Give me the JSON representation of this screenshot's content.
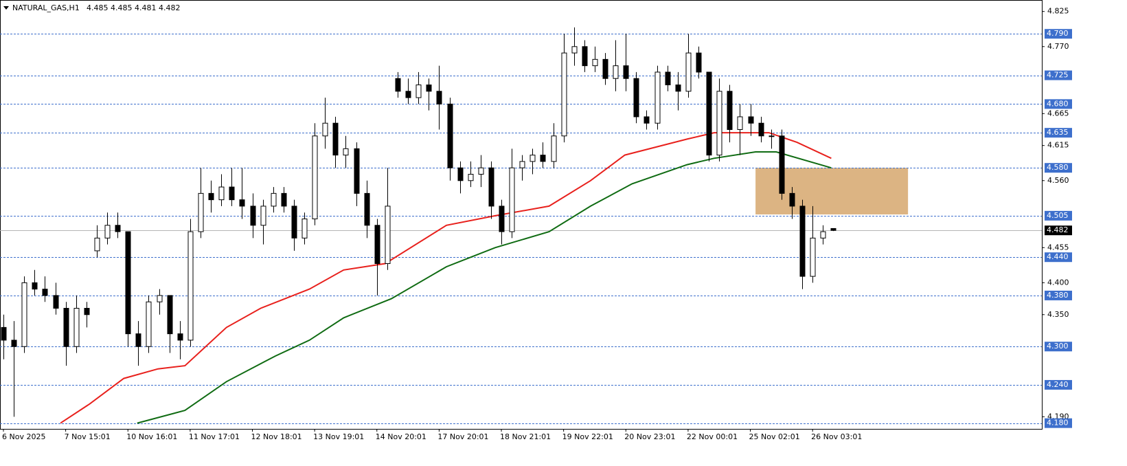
{
  "chart_data": {
    "type": "candlestick",
    "title": "NATURAL_GAS,H1",
    "subtitle": "4.485 4.485 4.481 4.482",
    "open": [
      4.33,
      4.31,
      4.3,
      4.4,
      4.39,
      4.38,
      4.36,
      4.3,
      4.36,
      4.45,
      4.47,
      4.49,
      4.48,
      4.32,
      4.3,
      4.37,
      4.38,
      4.32,
      4.31,
      4.48,
      4.54,
      4.53,
      4.55,
      4.53,
      4.52,
      4.49,
      4.52,
      4.54,
      4.52,
      4.47,
      4.5,
      4.63,
      4.65,
      4.6,
      4.61,
      4.54,
      4.49,
      4.43,
      4.72,
      4.7,
      4.69,
      4.71,
      4.7,
      4.68,
      4.58,
      4.56,
      4.57,
      4.58,
      4.52,
      4.48,
      4.58,
      4.59,
      4.6,
      4.59,
      4.63,
      4.76,
      4.77,
      4.74,
      4.75,
      4.72,
      4.74,
      4.72,
      4.66,
      4.65,
      4.73,
      4.71,
      4.7,
      4.76,
      4.73,
      4.6,
      4.7,
      4.64,
      4.66,
      4.65,
      4.63,
      4.63,
      4.54,
      4.52,
      4.41,
      4.47,
      4.485
    ],
    "high": [
      4.35,
      4.34,
      4.41,
      4.42,
      4.41,
      4.4,
      4.37,
      4.38,
      4.37,
      4.49,
      4.51,
      4.51,
      4.48,
      4.34,
      4.38,
      4.39,
      4.38,
      4.34,
      4.5,
      4.58,
      4.56,
      4.57,
      4.58,
      4.58,
      4.54,
      4.53,
      4.55,
      4.55,
      4.53,
      4.51,
      4.65,
      4.69,
      4.66,
      4.63,
      4.62,
      4.56,
      4.5,
      4.58,
      4.73,
      4.72,
      4.73,
      4.72,
      4.74,
      4.69,
      4.59,
      4.59,
      4.6,
      4.59,
      4.53,
      4.61,
      4.6,
      4.61,
      4.62,
      4.65,
      4.79,
      4.8,
      4.78,
      4.77,
      4.76,
      4.78,
      4.79,
      4.73,
      4.67,
      4.74,
      4.74,
      4.73,
      4.79,
      4.77,
      4.73,
      4.72,
      4.71,
      4.68,
      4.68,
      4.66,
      4.64,
      4.64,
      4.55,
      4.53,
      4.52,
      4.49,
      4.485
    ],
    "low": [
      4.28,
      4.19,
      4.29,
      4.38,
      4.37,
      4.35,
      4.27,
      4.29,
      4.33,
      4.44,
      4.46,
      4.47,
      4.3,
      4.27,
      4.29,
      4.35,
      4.29,
      4.28,
      4.3,
      4.47,
      4.51,
      4.52,
      4.52,
      4.5,
      4.47,
      4.46,
      4.51,
      4.51,
      4.45,
      4.46,
      4.49,
      4.61,
      4.58,
      4.58,
      4.52,
      4.47,
      4.38,
      4.42,
      4.69,
      4.68,
      4.68,
      4.67,
      4.64,
      4.56,
      4.54,
      4.55,
      4.55,
      4.5,
      4.46,
      4.47,
      4.56,
      4.57,
      4.58,
      4.58,
      4.62,
      4.74,
      4.73,
      4.73,
      4.71,
      4.7,
      4.7,
      4.65,
      4.64,
      4.64,
      4.7,
      4.67,
      4.69,
      4.72,
      4.59,
      4.59,
      4.62,
      4.6,
      4.63,
      4.62,
      4.61,
      4.53,
      4.5,
      4.39,
      4.4,
      4.46,
      4.481
    ],
    "close": [
      4.31,
      4.3,
      4.4,
      4.39,
      4.38,
      4.36,
      4.3,
      4.36,
      4.35,
      4.47,
      4.49,
      4.48,
      4.32,
      4.3,
      4.37,
      4.38,
      4.32,
      4.31,
      4.48,
      4.54,
      4.53,
      4.55,
      4.53,
      4.52,
      4.49,
      4.52,
      4.54,
      4.52,
      4.47,
      4.5,
      4.63,
      4.65,
      4.6,
      4.61,
      4.54,
      4.49,
      4.43,
      4.52,
      4.7,
      4.69,
      4.71,
      4.7,
      4.68,
      4.58,
      4.56,
      4.57,
      4.58,
      4.52,
      4.48,
      4.58,
      4.59,
      4.6,
      4.59,
      4.63,
      4.76,
      4.77,
      4.74,
      4.75,
      4.72,
      4.74,
      4.72,
      4.66,
      4.65,
      4.73,
      4.71,
      4.7,
      4.76,
      4.73,
      4.6,
      4.7,
      4.64,
      4.66,
      4.65,
      4.63,
      4.63,
      4.54,
      4.52,
      4.41,
      4.47,
      4.48,
      4.482
    ],
    "xlim": [
      -0.33,
      100.1
    ],
    "ylim": [
      4.171,
      4.843
    ],
    "xticks": [
      {
        "value": 0,
        "label": "6 Nov 2025"
      },
      {
        "value": 6,
        "label": "7 Nov 15:01"
      },
      {
        "value": 12,
        "label": "10 Nov 16:01"
      },
      {
        "value": 18,
        "label": "11 Nov 17:01"
      },
      {
        "value": 24,
        "label": "12 Nov 18:01"
      },
      {
        "value": 30,
        "label": "13 Nov 19:01"
      },
      {
        "value": 36,
        "label": "14 Nov 20:01"
      },
      {
        "value": 42,
        "label": "17 Nov 20:01"
      },
      {
        "value": 48,
        "label": "18 Nov 21:01"
      },
      {
        "value": 54,
        "label": "19 Nov 22:01"
      },
      {
        "value": 60,
        "label": "20 Nov 23:01"
      },
      {
        "value": 66,
        "label": "22 Nov 00:01"
      },
      {
        "value": 72,
        "label": "25 Nov 02:01"
      },
      {
        "value": 78,
        "label": "26 Nov 03:01"
      }
    ],
    "yticks": [
      4.825,
      {
        "value": 4.77,
        "label": "4.770"
      },
      4.665,
      4.615,
      {
        "value": 4.56,
        "label": "4.560"
      },
      4.455,
      {
        "value": 4.4,
        "label": "4.400"
      },
      {
        "value": 4.35,
        "label": "4.350"
      },
      {
        "value": 4.19,
        "label": "4.190"
      }
    ],
    "levels": [
      {
        "value": 4.79,
        "label": "4.790"
      },
      4.725,
      {
        "value": 4.68,
        "label": "4.680"
      },
      4.635,
      {
        "value": 4.58,
        "label": "4.580"
      },
      4.505,
      {
        "value": 4.44,
        "label": "4.440"
      },
      {
        "value": 4.38,
        "label": "4.380"
      },
      {
        "value": 4.3,
        "label": "4.300"
      },
      {
        "value": 4.24,
        "label": "4.240"
      },
      {
        "value": 4.18,
        "label": "4.180"
      }
    ],
    "level_color": "#3d6fcc",
    "last_price": 4.482,
    "moving_averages": [
      {
        "color": "#e8201c",
        "x": [
          5.5,
          8.3,
          11.6,
          14.9,
          17.5,
          21.5,
          24.8,
          29.5,
          32.8,
          36.8,
          42.7,
          47.4,
          52.6,
          56.6,
          59.9,
          65.9,
          68.5,
          73.8,
          76.5,
          79.8
        ],
        "values": [
          4.18,
          4.21,
          4.25,
          4.265,
          4.27,
          4.33,
          4.36,
          4.39,
          4.42,
          4.43,
          4.49,
          4.505,
          4.52,
          4.56,
          4.6,
          4.625,
          4.635,
          4.635,
          4.62,
          4.595
        ]
      },
      {
        "color": "#0f6b12",
        "x": [
          12.9,
          17.5,
          21.5,
          26.2,
          29.5,
          32.8,
          37.4,
          42.7,
          47.4,
          52.6,
          56.6,
          60.6,
          65.9,
          68.5,
          72.5,
          74.5,
          79.8
        ],
        "values": [
          4.18,
          4.2,
          4.245,
          4.285,
          4.31,
          4.345,
          4.375,
          4.425,
          4.455,
          4.48,
          4.52,
          4.555,
          4.585,
          4.595,
          4.605,
          4.605,
          4.58
        ]
      }
    ],
    "zone": {
      "x": [
        72.5,
        87.2
      ],
      "y": [
        4.507,
        4.58
      ],
      "color": "#dcb483"
    }
  }
}
